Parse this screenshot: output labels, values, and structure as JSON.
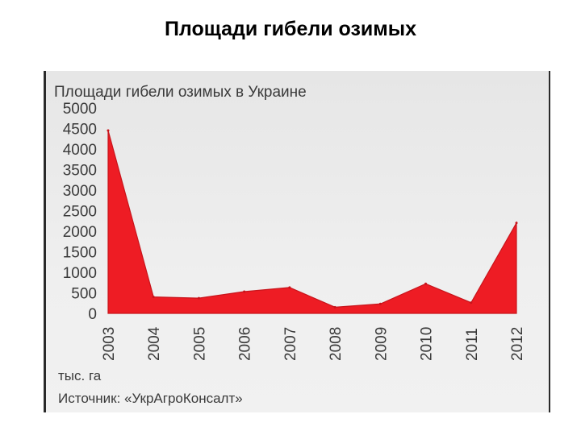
{
  "slide": {
    "title": "Площади гибели озимых"
  },
  "chart_data": {
    "type": "area",
    "title": "Площади гибели озимых в Украине",
    "categories": [
      "2003",
      "2004",
      "2005",
      "2006",
      "2007",
      "2008",
      "2009",
      "2010",
      "2011",
      "2012"
    ],
    "x": [
      2003,
      2004,
      2005,
      2006,
      2007,
      2008,
      2009,
      2010,
      2011,
      2012
    ],
    "values": [
      4450,
      400,
      370,
      530,
      630,
      150,
      230,
      720,
      260,
      2200
    ],
    "y_ticks": [
      "5000",
      "4500",
      "4000",
      "3500",
      "3000",
      "2500",
      "2000",
      "1500",
      "1000",
      "500",
      "0"
    ],
    "ylim": [
      0,
      5000
    ],
    "unit_label": "тыс. га",
    "source_label": "Источник: «УкрАгроКонсалт»",
    "grid": false,
    "area_color": "#ee1c24"
  }
}
